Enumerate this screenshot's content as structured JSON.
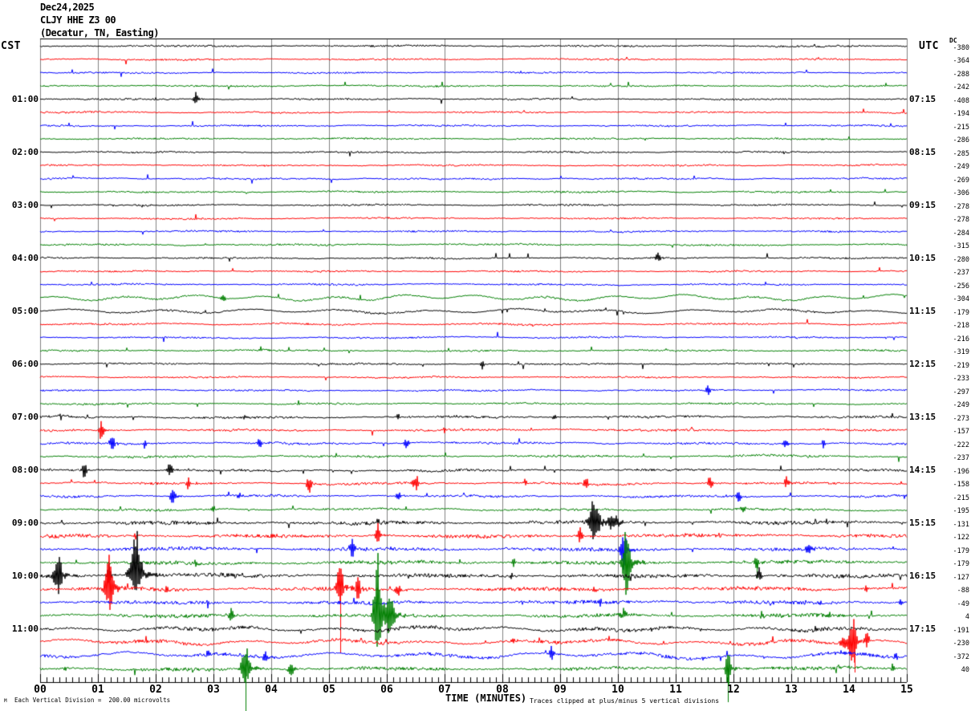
{
  "title": {
    "date": "Dec24,2025",
    "station": "CLJY HHE Z3 00",
    "location": "(Decatur, TN, Easting)"
  },
  "headers": {
    "left": "CST",
    "right": "UTC",
    "dc": "DC"
  },
  "footer": {
    "left_glyph": "M",
    "left": "Each Vertical Division =  200.00 microvolts",
    "right": "Traces clipped at plus/minus 5 vertical divisions"
  },
  "x_axis": {
    "title": "TIME (MINUTES)",
    "ticks": [
      "00",
      "01",
      "02",
      "03",
      "04",
      "05",
      "06",
      "07",
      "08",
      "09",
      "10",
      "11",
      "12",
      "13",
      "14",
      "15"
    ]
  },
  "chart_data": {
    "type": "line",
    "title": "Helicorder seismogram CLJY HHE Z3 00",
    "x_range_minutes": [
      0,
      15
    ],
    "rows_per_hour": 4,
    "trace_colors": [
      "#000000",
      "#ff0000",
      "#0000ff",
      "#007f00"
    ],
    "grid_color": "#808080",
    "left_hour_labels": [
      "01:00",
      "02:00",
      "03:00",
      "04:00",
      "05:00",
      "06:00",
      "07:00",
      "08:00",
      "09:00",
      "10:00",
      "11:00"
    ],
    "right_hour_labels": [
      "07:15",
      "08:15",
      "09:15",
      "10:15",
      "11:15",
      "12:15",
      "13:15",
      "14:15",
      "15:15",
      "16:15",
      "17:15"
    ],
    "dc_values": [
      -380,
      -364,
      -288,
      -242,
      -408,
      -194,
      -215,
      -286,
      -285,
      -249,
      -269,
      -306,
      -278,
      -278,
      -284,
      -315,
      -280,
      -237,
      -256,
      -304,
      -179,
      -218,
      -216,
      -319,
      -219,
      -233,
      -297,
      -249,
      -273,
      -157,
      -222,
      -237,
      -196,
      -158,
      -215,
      -195,
      -131,
      -122,
      -179,
      -179,
      -127,
      -88,
      -49,
      4,
      -191,
      -230,
      -372,
      40
    ],
    "noise": {
      "default_jitter": [
        0.85,
        0.75,
        0.75,
        0.8,
        0.75,
        0.75,
        0.75,
        0.8,
        0.75,
        0.75,
        0.75,
        0.8,
        0.75,
        0.75,
        0.75,
        0.8,
        0.75,
        0.75,
        0.8,
        0.85,
        0.85,
        0.8,
        0.75,
        0.8,
        0.75,
        0.75,
        0.75,
        0.8,
        1.0,
        1.0,
        1.0,
        1.0,
        1.0,
        1.05,
        1.0,
        1.0,
        1.6,
        1.6,
        1.6,
        1.6,
        1.7,
        1.7,
        1.6,
        1.6,
        1.6,
        1.5,
        1.5,
        1.5
      ],
      "wobble": [
        0.3,
        0.3,
        0.3,
        0.3,
        0.3,
        0.3,
        0.3,
        0.3,
        0.3,
        0.3,
        0.55,
        0.3,
        0.4,
        0.3,
        0.3,
        0.4,
        0.4,
        0.4,
        0.5,
        3.6,
        2.8,
        1.0,
        0.5,
        0.5,
        0.4,
        0.4,
        0.4,
        0.4,
        0.45,
        0.45,
        0.45,
        0.45,
        0.55,
        0.55,
        0.55,
        0.55,
        0.5,
        0.5,
        0.5,
        0.5,
        0.5,
        0.7,
        0.5,
        0.7,
        2.6,
        3.2,
        3.4,
        0.7
      ]
    },
    "events": [
      [
        4,
        2.7,
        10,
        3,
        0,
        1
      ],
      [
        16,
        10.7,
        7,
        3,
        0,
        1
      ],
      [
        19,
        3.17,
        6,
        3,
        0,
        1
      ],
      [
        24,
        7.65,
        8,
        2,
        0,
        1
      ],
      [
        26,
        11.55,
        6,
        3,
        0,
        1
      ],
      [
        28,
        0.36,
        5,
        2,
        0,
        1
      ],
      [
        28,
        3.56,
        4,
        2,
        0,
        1
      ],
      [
        28,
        6.2,
        4,
        2,
        0,
        1
      ],
      [
        28,
        8.9,
        6,
        2,
        0,
        1
      ],
      [
        29,
        1.05,
        14,
        3,
        0,
        1
      ],
      [
        29,
        7.0,
        4,
        2,
        0,
        1
      ],
      [
        30,
        1.25,
        14,
        3,
        0,
        1
      ],
      [
        30,
        1.8,
        6,
        2,
        0,
        1
      ],
      [
        30,
        3.8,
        8,
        3,
        0,
        1
      ],
      [
        30,
        6.35,
        8,
        3,
        0,
        1
      ],
      [
        30,
        12.9,
        8,
        3,
        0,
        1
      ],
      [
        30,
        13.55,
        7,
        2,
        0,
        1
      ],
      [
        32,
        0.76,
        10,
        3,
        0,
        1
      ],
      [
        32,
        2.25,
        10,
        3,
        0,
        1
      ],
      [
        33,
        2.57,
        8,
        3,
        0,
        1
      ],
      [
        33,
        4.65,
        13,
        3,
        0,
        1
      ],
      [
        33,
        6.5,
        14,
        3,
        0,
        1
      ],
      [
        33,
        8.4,
        7,
        2,
        0,
        1
      ],
      [
        33,
        9.44,
        10,
        3,
        0,
        1
      ],
      [
        33,
        11.6,
        10,
        3,
        0,
        1
      ],
      [
        33,
        12.92,
        10,
        3,
        0,
        1
      ],
      [
        34,
        2.3,
        11,
        4,
        0,
        1
      ],
      [
        34,
        3.45,
        6,
        2,
        0,
        1
      ],
      [
        34,
        6.2,
        7,
        3,
        0,
        1
      ],
      [
        34,
        12.1,
        8,
        3,
        0,
        1
      ],
      [
        35,
        3.0,
        5,
        2,
        0,
        1
      ],
      [
        35,
        12.15,
        7,
        3,
        0,
        1
      ],
      [
        36,
        5.85,
        6,
        2,
        0,
        1
      ],
      [
        36,
        9.6,
        32,
        6,
        0,
        0.9
      ],
      [
        36,
        9.95,
        8,
        9,
        0,
        1
      ],
      [
        36,
        13.6,
        4,
        2,
        0,
        1
      ],
      [
        37,
        1.65,
        5,
        2,
        0,
        1
      ],
      [
        37,
        5.85,
        15,
        3,
        0,
        1
      ],
      [
        37,
        9.35,
        10,
        3,
        0,
        1
      ],
      [
        38,
        5.4,
        12,
        3,
        0,
        1
      ],
      [
        38,
        10.1,
        30,
        4,
        0,
        0.9
      ],
      [
        38,
        13.3,
        9,
        3,
        0,
        1.5
      ],
      [
        39,
        2.7,
        6,
        2,
        0,
        1
      ],
      [
        39,
        8.2,
        7,
        2,
        0,
        1
      ],
      [
        39,
        10.15,
        46,
        5,
        0,
        0.9
      ],
      [
        39,
        12.4,
        11,
        3,
        20,
        1
      ],
      [
        40,
        0.3,
        32,
        5,
        0,
        0.8
      ],
      [
        40,
        1.2,
        14,
        3,
        0,
        1
      ],
      [
        40,
        1.65,
        64,
        7,
        0,
        0.4
      ],
      [
        40,
        8.15,
        6,
        2,
        0,
        1
      ],
      [
        40,
        11.15,
        7,
        2,
        0,
        1
      ],
      [
        40,
        12.45,
        11,
        3,
        0,
        1
      ],
      [
        41,
        1.2,
        50,
        5,
        0,
        0.6
      ],
      [
        41,
        2.2,
        7,
        2,
        0,
        1
      ],
      [
        41,
        5.2,
        46,
        4,
        80,
        0.45
      ],
      [
        41,
        5.5,
        18,
        3,
        0,
        1
      ],
      [
        41,
        6.2,
        9,
        3,
        0,
        1
      ],
      [
        41,
        9.6,
        7,
        2,
        0,
        1
      ],
      [
        41,
        14.3,
        5,
        2,
        0,
        1
      ],
      [
        42,
        2.9,
        7,
        2,
        0,
        1
      ],
      [
        42,
        5.45,
        6,
        2,
        0,
        1
      ],
      [
        42,
        9.7,
        8,
        2,
        0,
        1
      ],
      [
        42,
        13.5,
        6,
        2,
        0,
        1
      ],
      [
        42,
        14.9,
        5,
        2,
        0,
        1
      ],
      [
        43,
        3.3,
        10,
        3,
        0,
        1
      ],
      [
        43,
        5.85,
        82,
        5,
        0,
        0.6
      ],
      [
        43,
        6.05,
        22,
        6,
        0,
        1
      ],
      [
        43,
        10.1,
        9,
        3,
        0,
        1
      ],
      [
        43,
        12.5,
        8,
        2,
        0,
        1
      ],
      [
        43,
        13.65,
        8,
        2,
        0,
        1
      ],
      [
        44,
        13.4,
        5,
        2,
        0,
        1
      ],
      [
        45,
        1.85,
        6,
        2,
        0,
        1
      ],
      [
        45,
        8.2,
        6,
        2,
        0,
        1
      ],
      [
        45,
        13.9,
        9,
        4,
        0,
        1
      ],
      [
        45,
        14.05,
        26,
        5,
        0,
        1.2
      ],
      [
        45,
        14.1,
        10,
        2,
        38,
        1
      ],
      [
        45,
        14.3,
        11,
        4,
        0,
        1
      ],
      [
        46,
        2.9,
        6,
        2,
        0,
        1
      ],
      [
        46,
        3.9,
        12,
        3,
        0,
        1
      ],
      [
        46,
        8.85,
        10,
        3,
        0,
        1
      ],
      [
        46,
        14.8,
        8,
        2,
        0,
        1
      ],
      [
        47,
        0.45,
        5,
        2,
        0,
        1
      ],
      [
        47,
        3.55,
        38,
        5,
        53,
        0.5
      ],
      [
        47,
        4.35,
        10,
        4,
        0,
        1
      ],
      [
        47,
        11.9,
        30,
        3,
        42,
        0.8
      ],
      [
        47,
        14.77,
        8,
        2,
        0,
        1
      ]
    ]
  }
}
